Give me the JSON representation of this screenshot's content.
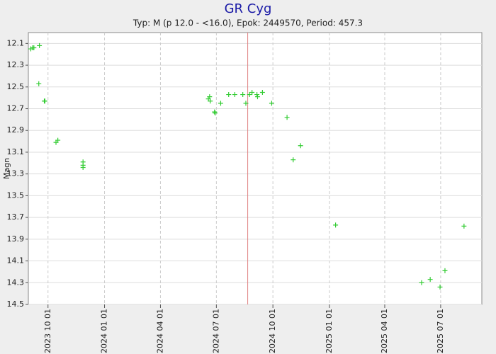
{
  "chart_data": {
    "type": "scatter",
    "title": "GR Cyg",
    "subtitle": "Typ: M (p 12.0 - <16.0), Epok: 2449570, Period: 457.3",
    "y_label": "Magn",
    "y_inverted": true,
    "grid": true,
    "marker_date": "2024-08-21",
    "marker_color": "#e08080",
    "xlim": [
      "2023-08-30",
      "2025-09-06"
    ],
    "xticks": [
      {
        "value": "2023-10-01",
        "label": "2023 10 01"
      },
      {
        "value": "2024-01-01",
        "label": "2024 01 01"
      },
      {
        "value": "2024-04-01",
        "label": "2024 04 01"
      },
      {
        "value": "2024-07-01",
        "label": "2024 07 01"
      },
      {
        "value": "2024-10-01",
        "label": "2024 10 01"
      },
      {
        "value": "2025-01-01",
        "label": "2025 01 01"
      },
      {
        "value": "2025-04-01",
        "label": "2025 04 01"
      },
      {
        "value": "2025-07-01",
        "label": "2025 07 01"
      }
    ],
    "ylim": [
      12.0,
      14.5
    ],
    "yticks": [
      12.1,
      12.3,
      12.5,
      12.7,
      12.9,
      13.1,
      13.3,
      13.5,
      13.7,
      13.9,
      14.1,
      14.3,
      14.5
    ],
    "series": [
      {
        "color": "#33cc33",
        "x": [
          "2023-09-03",
          "2023-09-06",
          "2023-09-08",
          "2023-09-17",
          "2023-09-16",
          "2023-09-25",
          "2023-09-26",
          "2023-10-14",
          "2023-10-17",
          "2023-11-27",
          "2023-11-27",
          "2023-11-27",
          "2024-06-18",
          "2024-06-20",
          "2024-06-21",
          "2024-06-28",
          "2024-06-29",
          "2024-07-08",
          "2024-07-21",
          "2024-07-31",
          "2024-08-13",
          "2024-08-18",
          "2024-08-24",
          "2024-08-28",
          "2024-09-05",
          "2024-09-06",
          "2024-09-14",
          "2024-09-29",
          "2024-10-24",
          "2024-11-03",
          "2024-11-15",
          "2025-01-11",
          "2025-05-31",
          "2025-06-14",
          "2025-06-30",
          "2025-07-08",
          "2025-08-08"
        ],
        "values": [
          12.15,
          12.14,
          12.14,
          12.12,
          12.47,
          12.63,
          12.63,
          13.01,
          12.99,
          13.19,
          13.22,
          13.24,
          12.61,
          12.59,
          12.63,
          12.73,
          12.74,
          12.65,
          12.57,
          12.57,
          12.57,
          12.65,
          12.57,
          12.55,
          12.57,
          12.59,
          12.55,
          12.65,
          12.78,
          13.17,
          13.04,
          13.77,
          14.3,
          14.27,
          14.34,
          14.19,
          13.78
        ]
      }
    ]
  }
}
